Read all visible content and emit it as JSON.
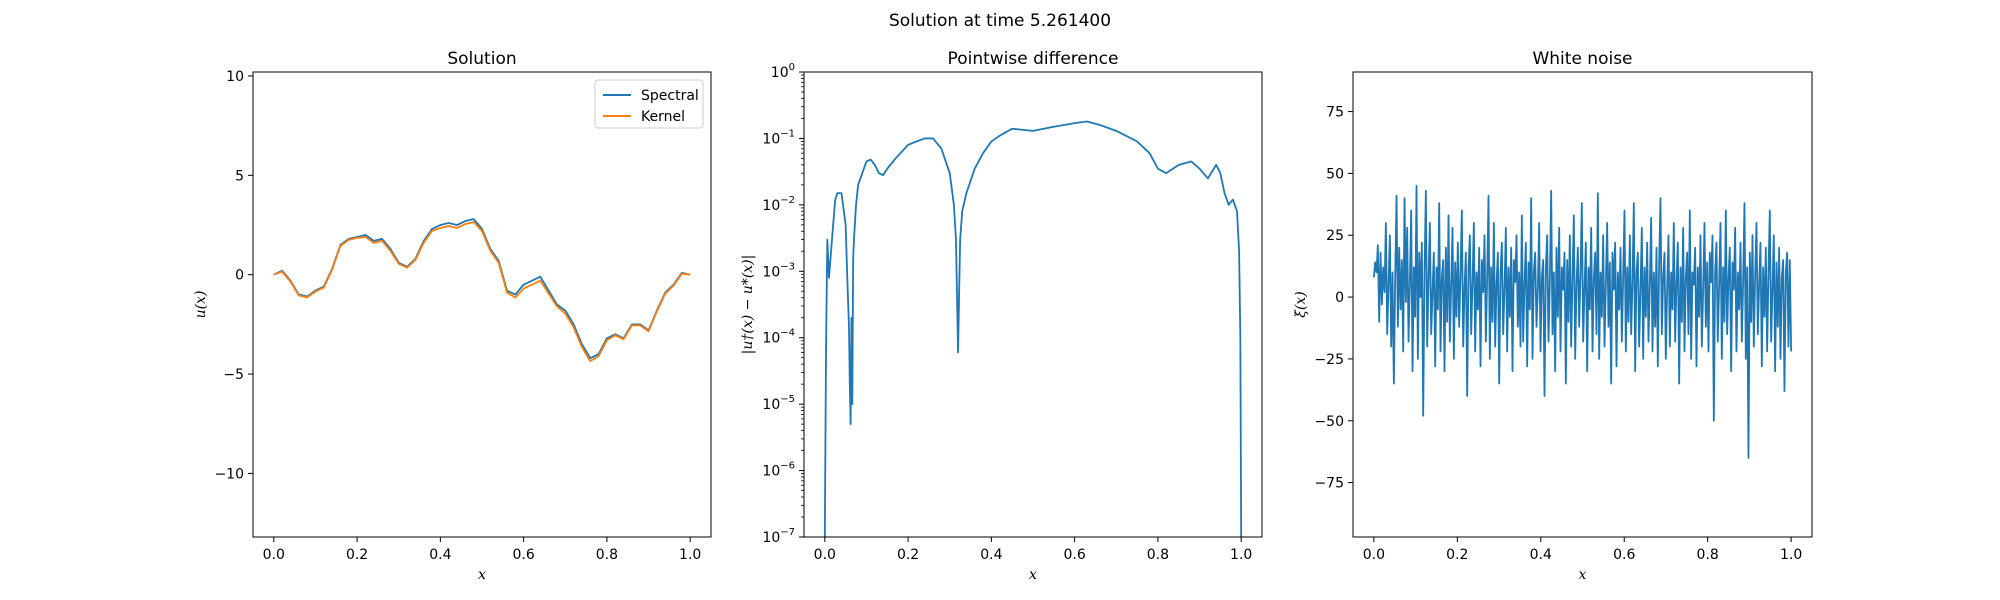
{
  "figure": {
    "suptitle": "Solution at time 5.261400"
  },
  "colors": {
    "spectral": "#1f77b4",
    "kernel": "#ff7f0e",
    "noise": "#1f77b4",
    "error": "#1f77b4"
  },
  "chart_data": [
    {
      "type": "line",
      "title": "Solution",
      "xlabel": "x",
      "ylabel": "u(x)",
      "xlim": [
        -0.05,
        1.05
      ],
      "ylim": [
        -13.2,
        10.2
      ],
      "xticks": [
        0.0,
        0.2,
        0.4,
        0.6,
        0.8,
        1.0
      ],
      "xtick_labels": [
        "0.0",
        "0.2",
        "0.4",
        "0.6",
        "0.8",
        "1.0"
      ],
      "yticks": [
        -10,
        -5,
        0,
        5,
        10
      ],
      "ytick_labels": [
        "−10",
        "−5",
        "0",
        "5",
        "10"
      ],
      "legend": {
        "placement": "top-right",
        "entries": [
          "Spectral",
          "Kernel"
        ]
      },
      "x": [
        0.0,
        0.02,
        0.04,
        0.06,
        0.08,
        0.1,
        0.12,
        0.14,
        0.16,
        0.18,
        0.2,
        0.22,
        0.24,
        0.26,
        0.28,
        0.3,
        0.32,
        0.34,
        0.36,
        0.38,
        0.4,
        0.42,
        0.44,
        0.46,
        0.48,
        0.5,
        0.52,
        0.54,
        0.56,
        0.58,
        0.6,
        0.62,
        0.64,
        0.66,
        0.68,
        0.7,
        0.72,
        0.74,
        0.76,
        0.78,
        0.8,
        0.82,
        0.84,
        0.86,
        0.88,
        0.9,
        0.92,
        0.94,
        0.96,
        0.98,
        1.0
      ],
      "series": [
        {
          "name": "Spectral",
          "values": [
            0.0,
            0.2,
            -0.3,
            -1.0,
            -1.1,
            -0.8,
            -0.6,
            0.3,
            1.5,
            1.8,
            1.9,
            2.0,
            1.7,
            1.8,
            1.3,
            0.6,
            0.4,
            0.8,
            1.7,
            2.3,
            2.5,
            2.6,
            2.5,
            2.7,
            2.8,
            2.3,
            1.3,
            0.7,
            -0.8,
            -1.0,
            -0.5,
            -0.3,
            -0.1,
            -0.8,
            -1.5,
            -1.8,
            -2.5,
            -3.5,
            -4.2,
            -4.0,
            -3.2,
            -3.0,
            -3.2,
            -2.5,
            -2.5,
            -2.8,
            -1.8,
            -0.9,
            -0.5,
            0.1,
            0.0
          ]
        },
        {
          "name": "Kernel",
          "values": [
            0.0,
            0.15,
            -0.35,
            -1.05,
            -1.15,
            -0.85,
            -0.65,
            0.25,
            1.45,
            1.75,
            1.85,
            1.9,
            1.6,
            1.7,
            1.2,
            0.55,
            0.35,
            0.75,
            1.6,
            2.2,
            2.35,
            2.45,
            2.35,
            2.55,
            2.65,
            2.2,
            1.2,
            0.6,
            -0.9,
            -1.15,
            -0.7,
            -0.5,
            -0.3,
            -0.95,
            -1.6,
            -1.95,
            -2.65,
            -3.65,
            -4.35,
            -4.1,
            -3.3,
            -3.05,
            -3.25,
            -2.55,
            -2.55,
            -2.85,
            -1.85,
            -0.95,
            -0.55,
            0.05,
            0.0
          ]
        }
      ]
    },
    {
      "type": "line",
      "title": "Pointwise difference",
      "xlabel": "x",
      "ylabel": "|u†(x) − u*(x)|",
      "yscale": "log",
      "xlim": [
        -0.05,
        1.05
      ],
      "ylim": [
        1e-07,
        1
      ],
      "xticks": [
        0.0,
        0.2,
        0.4,
        0.6,
        0.8,
        1.0
      ],
      "xtick_labels": [
        "0.0",
        "0.2",
        "0.4",
        "0.6",
        "0.8",
        "1.0"
      ],
      "yticks": [
        1e-07,
        1e-06,
        1e-05,
        0.0001,
        0.001,
        0.01,
        0.1,
        1
      ],
      "ytick_exponents": [
        "−7",
        "−6",
        "−5",
        "−4",
        "−3",
        "−2",
        "−1",
        "0"
      ],
      "ytick_base": "10",
      "x": [
        0.0,
        0.003,
        0.006,
        0.01,
        0.015,
        0.02,
        0.025,
        0.03,
        0.04,
        0.05,
        0.055,
        0.058,
        0.06,
        0.062,
        0.064,
        0.066,
        0.068,
        0.07,
        0.075,
        0.08,
        0.09,
        0.1,
        0.11,
        0.12,
        0.13,
        0.14,
        0.15,
        0.17,
        0.2,
        0.22,
        0.24,
        0.26,
        0.28,
        0.3,
        0.31,
        0.315,
        0.318,
        0.32,
        0.322,
        0.325,
        0.33,
        0.34,
        0.36,
        0.38,
        0.4,
        0.42,
        0.45,
        0.5,
        0.55,
        0.6,
        0.63,
        0.66,
        0.7,
        0.75,
        0.78,
        0.8,
        0.82,
        0.85,
        0.88,
        0.9,
        0.92,
        0.94,
        0.95,
        0.96,
        0.97,
        0.98,
        0.99,
        0.995,
        0.998,
        1.0
      ],
      "values": [
        1e-07,
        8e-05,
        0.003,
        0.0008,
        0.002,
        0.005,
        0.012,
        0.015,
        0.015,
        0.005,
        0.0005,
        0.00015,
        2e-05,
        5e-06,
        0.0002,
        1e-05,
        0.0015,
        0.003,
        0.01,
        0.02,
        0.03,
        0.045,
        0.048,
        0.04,
        0.03,
        0.028,
        0.035,
        0.05,
        0.08,
        0.09,
        0.1,
        0.1,
        0.07,
        0.03,
        0.01,
        0.003,
        0.0003,
        6e-05,
        0.0003,
        0.003,
        0.008,
        0.015,
        0.035,
        0.06,
        0.09,
        0.11,
        0.14,
        0.13,
        0.15,
        0.17,
        0.18,
        0.16,
        0.13,
        0.09,
        0.06,
        0.035,
        0.03,
        0.04,
        0.045,
        0.035,
        0.025,
        0.04,
        0.03,
        0.015,
        0.01,
        0.012,
        0.008,
        0.002,
        0.0001,
        1e-07
      ]
    },
    {
      "type": "line",
      "title": "White noise",
      "xlabel": "x",
      "ylabel": "ξ(x)",
      "xlim": [
        -0.05,
        1.05
      ],
      "ylim": [
        -97,
        91
      ],
      "xticks": [
        0.0,
        0.2,
        0.4,
        0.6,
        0.8,
        1.0
      ],
      "xtick_labels": [
        "0.0",
        "0.2",
        "0.4",
        "0.6",
        "0.8",
        "1.0"
      ],
      "yticks": [
        -75,
        -50,
        -25,
        0,
        25,
        50,
        75
      ],
      "ytick_labels": [
        "−75",
        "−50",
        "−25",
        "0",
        "25",
        "50",
        "75"
      ],
      "x_start": 0.0,
      "x_end": 1.0,
      "values": [
        8,
        14,
        10,
        21,
        -10,
        18,
        -3,
        12,
        2,
        30,
        -15,
        5,
        25,
        -20,
        10,
        -35,
        8,
        41,
        -12,
        20,
        -5,
        15,
        -22,
        40,
        -2,
        28,
        -18,
        5,
        35,
        -30,
        12,
        -8,
        45,
        -25,
        18,
        0,
        22,
        -48,
        10,
        43,
        -20,
        7,
        30,
        -15,
        2,
        18,
        -28,
        12,
        -5,
        38,
        -22,
        8,
        15,
        -30,
        20,
        -10,
        33,
        -18,
        5,
        28,
        -25,
        14,
        -8,
        22,
        -12,
        10,
        35,
        -20,
        3,
        18,
        -40,
        12,
        25,
        -15,
        6,
        30,
        -22,
        10,
        -5,
        20,
        -28,
        15,
        2,
        25,
        -18,
        8,
        41,
        -25,
        12,
        -10,
        30,
        -20,
        5,
        18,
        -35,
        10,
        22,
        -15,
        3,
        28,
        -22,
        12,
        -8,
        20,
        -30,
        15,
        6,
        25,
        -12,
        10,
        -20,
        33,
        -18,
        5,
        22,
        -28,
        14,
        -5,
        40,
        -25,
        10,
        18,
        -12,
        3,
        30,
        -22,
        8,
        15,
        -40,
        12,
        25,
        -18,
        6,
        43,
        -15,
        10,
        -30,
        20,
        -8,
        28,
        -22,
        12,
        3,
        18,
        -35,
        15,
        -10,
        25,
        -20,
        8,
        33,
        -25,
        5,
        20,
        -12,
        10,
        38,
        -18,
        3,
        22,
        -30,
        12,
        -5,
        28,
        -22,
        8,
        18,
        -15,
        42,
        -25,
        10,
        -8,
        25,
        -20,
        5,
        30,
        -12,
        14,
        -35,
        18,
        3,
        22,
        -28,
        10,
        -5,
        20,
        -18,
        8,
        35,
        -22,
        12,
        -10,
        25,
        -15,
        6,
        38,
        -30,
        10,
        18,
        -20,
        3,
        28,
        -25,
        12,
        -8,
        22,
        -18,
        5,
        32,
        -22,
        10,
        -12,
        20,
        -28,
        14,
        40,
        -15,
        8,
        18,
        -25,
        3,
        25,
        -20,
        10,
        -5,
        30,
        -18,
        6,
        22,
        -35,
        12,
        -10,
        28,
        -22,
        8,
        18,
        -15,
        35,
        -25,
        10,
        5,
        20,
        -28,
        12,
        -8,
        25,
        -20,
        3,
        30,
        -12,
        14,
        -22,
        18,
        6,
        25,
        -50,
        10,
        22,
        -18,
        5,
        30,
        -25,
        12,
        -10,
        35,
        -15,
        8,
        20,
        -30,
        14,
        3,
        28,
        -22,
        10,
        -5,
        22,
        -18,
        6,
        38,
        -25,
        12,
        -65,
        18,
        -10,
        25,
        -20,
        8,
        30,
        -15,
        5,
        22,
        -28,
        12,
        -8,
        20,
        -22,
        10,
        35,
        -18,
        3,
        25,
        -30,
        14,
        -12,
        20,
        -25,
        8,
        15,
        -38,
        10,
        18,
        -20,
        15,
        -22
      ]
    }
  ]
}
